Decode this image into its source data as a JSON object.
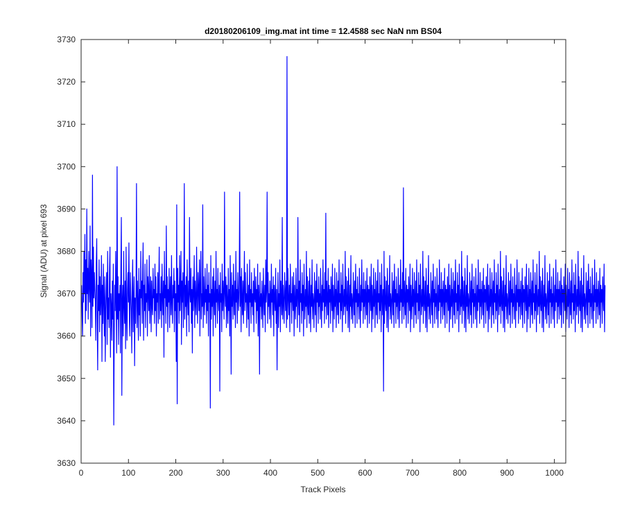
{
  "chart_data": {
    "type": "line",
    "title": "d20180206109_img.mat int time = 12.4588 sec  NaN nm BS04",
    "xlabel": "Track Pixels",
    "ylabel": "Signal (ADU) at pixel 693",
    "xlim": [
      0,
      1024
    ],
    "ylim": [
      3630,
      3730
    ],
    "xticks": [
      0,
      100,
      200,
      300,
      400,
      500,
      600,
      700,
      800,
      900,
      1000
    ],
    "yticks": [
      3630,
      3640,
      3650,
      3660,
      3670,
      3680,
      3690,
      3700,
      3710,
      3720,
      3730
    ],
    "grid": false,
    "line_color": "#0000ff",
    "series": [
      {
        "x_start": 1,
        "x_step": 1,
        "values": [
          3672,
          3665,
          3660,
          3675,
          3668,
          3680,
          3670,
          3684,
          3663,
          3678,
          3666,
          3690,
          3670,
          3676,
          3664,
          3680,
          3672,
          3668,
          3686,
          3660,
          3678,
          3674,
          3662,
          3698,
          3667,
          3681,
          3669,
          3675,
          3671,
          3668,
          3659,
          3677,
          3683,
          3664,
          3652,
          3672,
          3666,
          3678,
          3661,
          3674,
          3665,
          3669,
          3679,
          3654,
          3672,
          3663,
          3677,
          3668,
          3660,
          3674,
          3654,
          3666,
          3671,
          3675,
          3658,
          3680,
          3664,
          3669,
          3662,
          3676,
          3681,
          3655,
          3670,
          3667,
          3659,
          3673,
          3664,
          3677,
          3639,
          3661,
          3672,
          3666,
          3680,
          3668,
          3656,
          3700,
          3664,
          3674,
          3658,
          3670,
          3666,
          3672,
          3656,
          3676,
          3688,
          3646,
          3668,
          3672,
          3660,
          3680,
          3667,
          3663,
          3673,
          3657,
          3681,
          3666,
          3659,
          3671,
          3675,
          3668,
          3682,
          3664,
          3660,
          3675,
          3670,
          3666,
          3656,
          3672,
          3678,
          3661,
          3668,
          3674,
          3653,
          3669,
          3663,
          3670,
          3696,
          3662,
          3673,
          3668,
          3659,
          3676,
          3665,
          3671,
          3660,
          3680,
          3669,
          3673,
          3663,
          3675,
          3682,
          3659,
          3672,
          3666,
          3677,
          3662,
          3670,
          3668,
          3678,
          3660,
          3674,
          3671,
          3666,
          3679,
          3663,
          3669,
          3674,
          3661,
          3673,
          3667,
          3665,
          3676,
          3669,
          3671,
          3663,
          3677,
          3666,
          3674,
          3660,
          3670,
          3668,
          3675,
          3663,
          3672,
          3681,
          3664,
          3670,
          3666,
          3674,
          3662,
          3677,
          3669,
          3665,
          3673,
          3655,
          3680,
          3669,
          3672,
          3663,
          3686,
          3667,
          3674,
          3661,
          3671,
          3668,
          3676,
          3662,
          3670,
          3674,
          3665,
          3679,
          3668,
          3663,
          3672,
          3669,
          3676,
          3661,
          3673,
          3666,
          3670,
          3654,
          3691,
          3644,
          3676,
          3668,
          3672,
          3663,
          3679,
          3666,
          3671,
          3680,
          3658,
          3673,
          3668,
          3675,
          3662,
          3670,
          3696,
          3664,
          3672,
          3667,
          3674,
          3660,
          3678,
          3669,
          3665,
          3673,
          3661,
          3688,
          3670,
          3668,
          3676,
          3663,
          3671,
          3656,
          3674,
          3666,
          3670,
          3679,
          3662,
          3673,
          3668,
          3665,
          3681,
          3669,
          3663,
          3675,
          3671,
          3666,
          3678,
          3660,
          3672,
          3680,
          3664,
          3670,
          3667,
          3691,
          3662,
          3674,
          3669,
          3665,
          3676,
          3668,
          3671,
          3663,
          3677,
          3666,
          3672,
          3660,
          3675,
          3668,
          3670,
          3643,
          3679,
          3664,
          3671,
          3667,
          3674,
          3660,
          3676,
          3669,
          3665,
          3673,
          3662,
          3680,
          3668,
          3671,
          3663,
          3676,
          3669,
          3666,
          3672,
          3647,
          3675,
          3668,
          3670,
          3661,
          3677,
          3666,
          3673,
          3669,
          3664,
          3694,
          3670,
          3667,
          3674,
          3662,
          3672,
          3668,
          3663,
          3676,
          3666,
          3671,
          3660,
          3679,
          3669,
          3651,
          3675,
          3667,
          3672,
          3664,
          3677,
          3669,
          3665,
          3673,
          3662,
          3680,
          3668,
          3671,
          3663,
          3675,
          3670,
          3666,
          3672,
          3694,
          3667,
          3674,
          3661,
          3676,
          3669,
          3665,
          3673,
          3663,
          3671,
          3680,
          3666,
          3675,
          3668,
          3670,
          3662,
          3677,
          3669,
          3664,
          3672,
          3660,
          3678,
          3668,
          3671,
          3663,
          3675,
          3667,
          3670,
          3665,
          3673,
          3661,
          3676,
          3669,
          3668,
          3674,
          3663,
          3671,
          3666,
          3677,
          3660,
          3672,
          3669,
          3651,
          3675,
          3667,
          3670,
          3664,
          3673,
          3668,
          3662,
          3676,
          3669,
          3665,
          3672,
          3661,
          3678,
          3668,
          3671,
          3694,
          3663,
          3675,
          3667,
          3670,
          3664,
          3673,
          3669,
          3662,
          3677,
          3668,
          3671,
          3665,
          3674,
          3660,
          3672,
          3669,
          3666,
          3676,
          3663,
          3671,
          3652,
          3668,
          3675,
          3662,
          3670,
          3667,
          3678,
          3661,
          3673,
          3669,
          3665,
          3688,
          3664,
          3672,
          3668,
          3663,
          3675,
          3670,
          3666,
          3673,
          3662,
          3726,
          3664,
          3676,
          3669,
          3665,
          3672,
          3661,
          3677,
          3668,
          3670,
          3663,
          3674,
          3669,
          3666,
          3675,
          3660,
          3672,
          3668,
          3664,
          3676,
          3667,
          3671,
          3662,
          3688,
          3669,
          3665,
          3673,
          3661,
          3678,
          3668,
          3670,
          3663,
          3675,
          3666,
          3672,
          3660,
          3677,
          3669,
          3664,
          3671,
          3667,
          3680,
          3662,
          3674,
          3668,
          3665,
          3673,
          3663,
          3676,
          3669,
          3661,
          3672,
          3667,
          3678,
          3664,
          3670,
          3668,
          3662,
          3675,
          3669,
          3665,
          3673,
          3661,
          3677,
          3668,
          3671,
          3663,
          3674,
          3667,
          3670,
          3664,
          3676,
          3669,
          3662,
          3672,
          3666,
          3678,
          3668,
          3671,
          3663,
          3675,
          3667,
          3689,
          3664,
          3673,
          3669,
          3665,
          3676,
          3662,
          3672,
          3668,
          3671,
          3663,
          3674,
          3669,
          3666,
          3677,
          3661,
          3672,
          3668,
          3664,
          3676,
          3667,
          3671,
          3662,
          3675,
          3669,
          3665,
          3673,
          3663,
          3678,
          3668,
          3670,
          3664,
          3675,
          3666,
          3672,
          3661,
          3677,
          3669,
          3665,
          3671,
          3667,
          3680,
          3663,
          3674,
          3668,
          3666,
          3673,
          3662,
          3676,
          3669,
          3661,
          3672,
          3667,
          3679,
          3664,
          3670,
          3668,
          3663,
          3675,
          3669,
          3665,
          3673,
          3662,
          3677,
          3668,
          3671,
          3663,
          3674,
          3667,
          3670,
          3664,
          3676,
          3669,
          3662,
          3672,
          3666,
          3678,
          3668,
          3671,
          3663,
          3675,
          3667,
          3671,
          3664,
          3673,
          3669,
          3665,
          3676,
          3662,
          3672,
          3668,
          3671,
          3663,
          3674,
          3669,
          3666,
          3677,
          3661,
          3672,
          3668,
          3664,
          3676,
          3667,
          3671,
          3662,
          3675,
          3669,
          3665,
          3673,
          3663,
          3678,
          3668,
          3670,
          3664,
          3675,
          3666,
          3672,
          3661,
          3677,
          3669,
          3665,
          3671,
          3647,
          3680,
          3663,
          3674,
          3668,
          3666,
          3673,
          3662,
          3676,
          3669,
          3661,
          3672,
          3667,
          3679,
          3664,
          3670,
          3668,
          3663,
          3675,
          3669,
          3665,
          3673,
          3662,
          3677,
          3668,
          3671,
          3663,
          3674,
          3667,
          3670,
          3664,
          3676,
          3669,
          3662,
          3672,
          3666,
          3678,
          3668,
          3671,
          3663,
          3675,
          3667,
          3695,
          3664,
          3673,
          3669,
          3665,
          3676,
          3662,
          3672,
          3668,
          3671,
          3663,
          3674,
          3669,
          3666,
          3677,
          3661,
          3672,
          3668,
          3664,
          3676,
          3667,
          3671,
          3662,
          3675,
          3669,
          3665,
          3673,
          3663,
          3678,
          3668,
          3670,
          3664,
          3675,
          3666,
          3672,
          3661,
          3677,
          3669,
          3665,
          3671,
          3667,
          3680,
          3663,
          3674,
          3668,
          3666,
          3673,
          3662,
          3676,
          3669,
          3661,
          3672,
          3667,
          3679,
          3664,
          3670,
          3668,
          3663,
          3675,
          3669,
          3665,
          3673,
          3662,
          3677,
          3668,
          3671,
          3663,
          3674,
          3667,
          3670,
          3664,
          3676,
          3669,
          3662,
          3672,
          3666,
          3678,
          3668,
          3671,
          3663,
          3675,
          3667,
          3671,
          3664,
          3673,
          3669,
          3665,
          3676,
          3662,
          3672,
          3668,
          3671,
          3663,
          3674,
          3669,
          3666,
          3677,
          3661,
          3672,
          3668,
          3664,
          3676,
          3667,
          3671,
          3662,
          3675,
          3669,
          3665,
          3673,
          3663,
          3678,
          3668,
          3670,
          3664,
          3675,
          3666,
          3672,
          3661,
          3677,
          3669,
          3665,
          3671,
          3667,
          3680,
          3663,
          3674,
          3668,
          3666,
          3673,
          3662,
          3676,
          3669,
          3661,
          3672,
          3667,
          3679,
          3664,
          3670,
          3668,
          3663,
          3675,
          3669,
          3665,
          3673,
          3662,
          3677,
          3668,
          3671,
          3663,
          3674,
          3667,
          3670,
          3664,
          3676,
          3669,
          3662,
          3672,
          3666,
          3678,
          3668,
          3671,
          3663,
          3675,
          3667,
          3671,
          3664,
          3673,
          3669,
          3665,
          3676,
          3662,
          3672,
          3668,
          3671,
          3663,
          3674,
          3669,
          3666,
          3677,
          3661,
          3672,
          3668,
          3664,
          3676,
          3667,
          3671,
          3662,
          3675,
          3669,
          3665,
          3673,
          3663,
          3678,
          3668,
          3670,
          3664,
          3675,
          3666,
          3672,
          3661,
          3677,
          3669,
          3665,
          3671,
          3667,
          3680,
          3663,
          3674,
          3668,
          3666,
          3673,
          3662,
          3676,
          3669,
          3661,
          3672,
          3667,
          3679,
          3664,
          3670,
          3668,
          3663,
          3675,
          3669,
          3665,
          3673,
          3662,
          3677,
          3668,
          3671,
          3663,
          3674,
          3667,
          3670,
          3664,
          3676,
          3669,
          3662,
          3672,
          3666,
          3678,
          3668,
          3671,
          3663,
          3675,
          3667,
          3671,
          3664,
          3673,
          3669,
          3665,
          3676,
          3662,
          3672,
          3668,
          3671,
          3663,
          3674,
          3669,
          3666,
          3677,
          3661,
          3672,
          3668,
          3664,
          3676,
          3667,
          3671,
          3662,
          3675,
          3669,
          3665,
          3673,
          3663,
          3678,
          3668,
          3670,
          3664,
          3675,
          3666,
          3672,
          3661,
          3677,
          3669,
          3665,
          3671,
          3667,
          3680,
          3663,
          3674,
          3668,
          3666,
          3673,
          3662,
          3676,
          3669,
          3661,
          3672,
          3667,
          3679,
          3664,
          3670,
          3668,
          3663,
          3675,
          3669,
          3665,
          3673,
          3662,
          3677,
          3668,
          3671,
          3663,
          3674,
          3667,
          3670,
          3664,
          3676,
          3669,
          3662,
          3672,
          3666,
          3678,
          3668,
          3671,
          3663,
          3675,
          3667,
          3671,
          3664,
          3673,
          3669,
          3665,
          3676,
          3662,
          3672,
          3668,
          3671,
          3663,
          3674,
          3669,
          3666,
          3677,
          3661,
          3672,
          3668,
          3664,
          3676,
          3667,
          3671,
          3662,
          3675,
          3669,
          3665,
          3673,
          3663,
          3678,
          3668,
          3670,
          3664,
          3675,
          3666,
          3672,
          3661,
          3677,
          3669,
          3665,
          3671,
          3667,
          3680,
          3663,
          3674,
          3668,
          3666,
          3673,
          3662,
          3676,
          3669,
          3661,
          3672,
          3667,
          3679,
          3664,
          3670,
          3668,
          3663,
          3675,
          3669,
          3665,
          3673,
          3662,
          3677,
          3668,
          3671,
          3663,
          3674,
          3667,
          3670,
          3664,
          3676,
          3669,
          3662,
          3672,
          3666,
          3678,
          3668,
          3671,
          3663,
          3675,
          3667,
          3671,
          3664,
          3673,
          3669,
          3665,
          3676,
          3662,
          3672,
          3668,
          3671,
          3663,
          3674,
          3669,
          3666,
          3677,
          3661,
          3672
        ]
      }
    ]
  }
}
